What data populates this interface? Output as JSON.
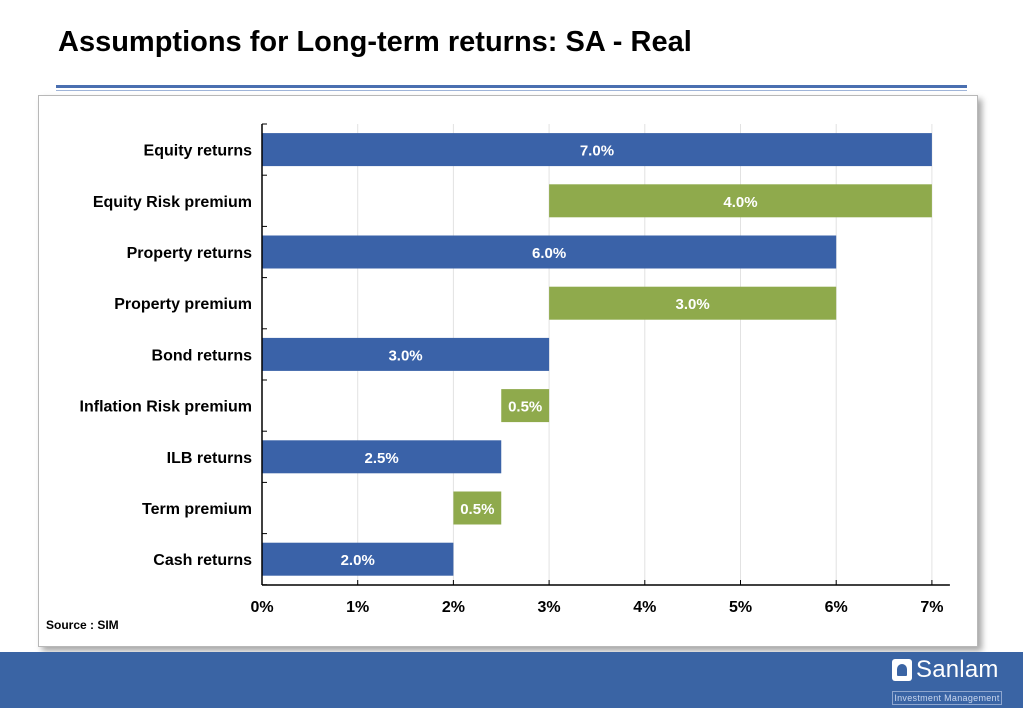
{
  "slide": {
    "title": "Assumptions for Long-term returns: SA - Real",
    "source": "Source : SIM"
  },
  "logo": {
    "name": "Sanlam",
    "subtitle": "Investment Management"
  },
  "colors": {
    "returns_bar": "#3a62a8",
    "premium_bar": "#8faa4c",
    "footer": "#3a64a4"
  },
  "chart_data": {
    "type": "bar",
    "orientation": "horizontal",
    "style": "waterfall",
    "categories": [
      "Equity returns",
      "Equity Risk premium",
      "Property returns",
      "Property premium",
      "Bond returns",
      "Inflation Risk premium",
      "ILB returns",
      "Term premium",
      "Cash returns"
    ],
    "bars": [
      {
        "category": "Equity returns",
        "start": 0,
        "end": 7.0,
        "value": 7.0,
        "label": "7.0%",
        "kind": "returns"
      },
      {
        "category": "Equity Risk premium",
        "start": 3.0,
        "end": 7.0,
        "value": 4.0,
        "label": "4.0%",
        "kind": "premium"
      },
      {
        "category": "Property returns",
        "start": 0,
        "end": 6.0,
        "value": 6.0,
        "label": "6.0%",
        "kind": "returns"
      },
      {
        "category": "Property premium",
        "start": 3.0,
        "end": 6.0,
        "value": 3.0,
        "label": "3.0%",
        "kind": "premium"
      },
      {
        "category": "Bond returns",
        "start": 0,
        "end": 3.0,
        "value": 3.0,
        "label": "3.0%",
        "kind": "returns"
      },
      {
        "category": "Inflation Risk premium",
        "start": 2.5,
        "end": 3.0,
        "value": 0.5,
        "label": "0.5%",
        "kind": "premium"
      },
      {
        "category": "ILB returns",
        "start": 0,
        "end": 2.5,
        "value": 2.5,
        "label": "2.5%",
        "kind": "returns"
      },
      {
        "category": "Term premium",
        "start": 2.0,
        "end": 2.5,
        "value": 0.5,
        "label": "0.5%",
        "kind": "premium"
      },
      {
        "category": "Cash returns",
        "start": 0,
        "end": 2.0,
        "value": 2.0,
        "label": "2.0%",
        "kind": "returns"
      }
    ],
    "x_ticks": [
      "0%",
      "1%",
      "2%",
      "3%",
      "4%",
      "5%",
      "6%",
      "7%"
    ],
    "xlim": [
      0,
      7
    ],
    "xlabel": "",
    "ylabel": "",
    "grid": "vertical",
    "legend": "none"
  }
}
